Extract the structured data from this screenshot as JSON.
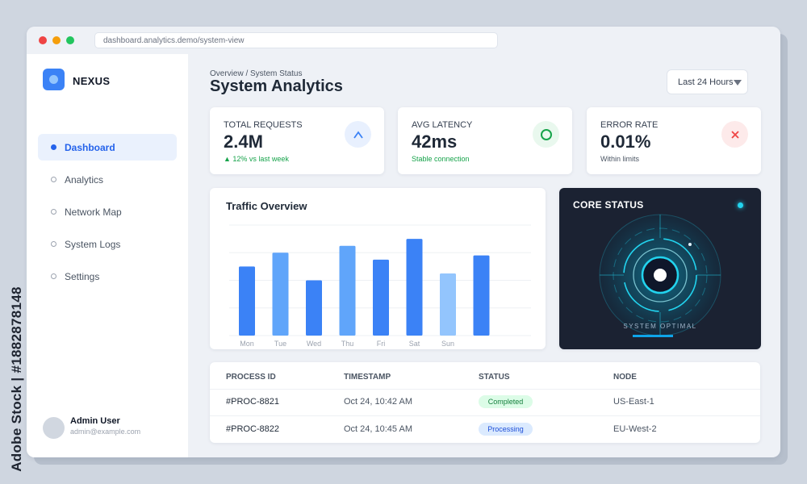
{
  "watermark": {
    "side_text": "Adobe Stock | #1882878148"
  },
  "window": {
    "url": "dashboard.analytics.demo/system-view"
  },
  "sidebar": {
    "brand": "NEXUS",
    "items": [
      {
        "label": "Dashboard",
        "active": true
      },
      {
        "label": "Analytics",
        "active": false
      },
      {
        "label": "Network Map",
        "active": false
      },
      {
        "label": "System Logs",
        "active": false
      },
      {
        "label": "Settings",
        "active": false
      }
    ],
    "user": {
      "name": "Admin User",
      "email": "admin@example.com"
    }
  },
  "header": {
    "breadcrumb": "Overview / System Status",
    "title": "System Analytics",
    "range": "Last 24 Hours"
  },
  "kpis": [
    {
      "label": "TOTAL REQUESTS",
      "value": "2.4M",
      "sub": "▲ 12% vs last week",
      "icon": "chevron-up-icon",
      "sub_color": "#16a34a",
      "icon_color": "#3b82f6",
      "icon_bg": "#e8f0fe"
    },
    {
      "label": "AVG LATENCY",
      "value": "42ms",
      "sub": "Stable connection",
      "icon": "circle-icon",
      "sub_color": "#16a34a",
      "icon_color": "#16a34a",
      "icon_bg": "#e9f8ee"
    },
    {
      "label": "ERROR RATE",
      "value": "0.01%",
      "sub": "Within limits",
      "icon": "close-icon",
      "sub_color": "#4b5563",
      "icon_color": "#ef4444",
      "icon_bg": "#fdeaea"
    }
  ],
  "traffic": {
    "title": "Traffic Overview"
  },
  "chart_data": {
    "type": "bar",
    "title": "Traffic Overview",
    "categories": [
      "Mon",
      "Tue",
      "Wed",
      "Thu",
      "Fri",
      "Sat",
      "Sun",
      ""
    ],
    "values": [
      50,
      60,
      40,
      65,
      55,
      70,
      45,
      58
    ],
    "ylim": [
      0,
      80
    ],
    "grid": true,
    "colors": [
      "#3b82f6",
      "#60a5fa",
      "#3b82f6",
      "#60a5fa",
      "#3b82f6",
      "#3b82f6",
      "#93c5fd",
      "#3b82f6"
    ]
  },
  "core": {
    "title": "CORE STATUS",
    "caption": "SYSTEM OPTIMAL",
    "accent": "#22d3ee"
  },
  "table": {
    "headers": [
      "PROCESS ID",
      "TIMESTAMP",
      "STATUS",
      "NODE"
    ],
    "rows": [
      {
        "id": "#PROC-8821",
        "time": "Oct 24, 10:42 AM",
        "status": "Completed",
        "status_bg": "#dcfce7",
        "status_fg": "#15803d",
        "node": "US-East-1"
      },
      {
        "id": "#PROC-8822",
        "time": "Oct 24, 10:45 AM",
        "status": "Processing",
        "status_bg": "#dbeafe",
        "status_fg": "#1d4ed8",
        "node": "EU-West-2"
      }
    ]
  }
}
